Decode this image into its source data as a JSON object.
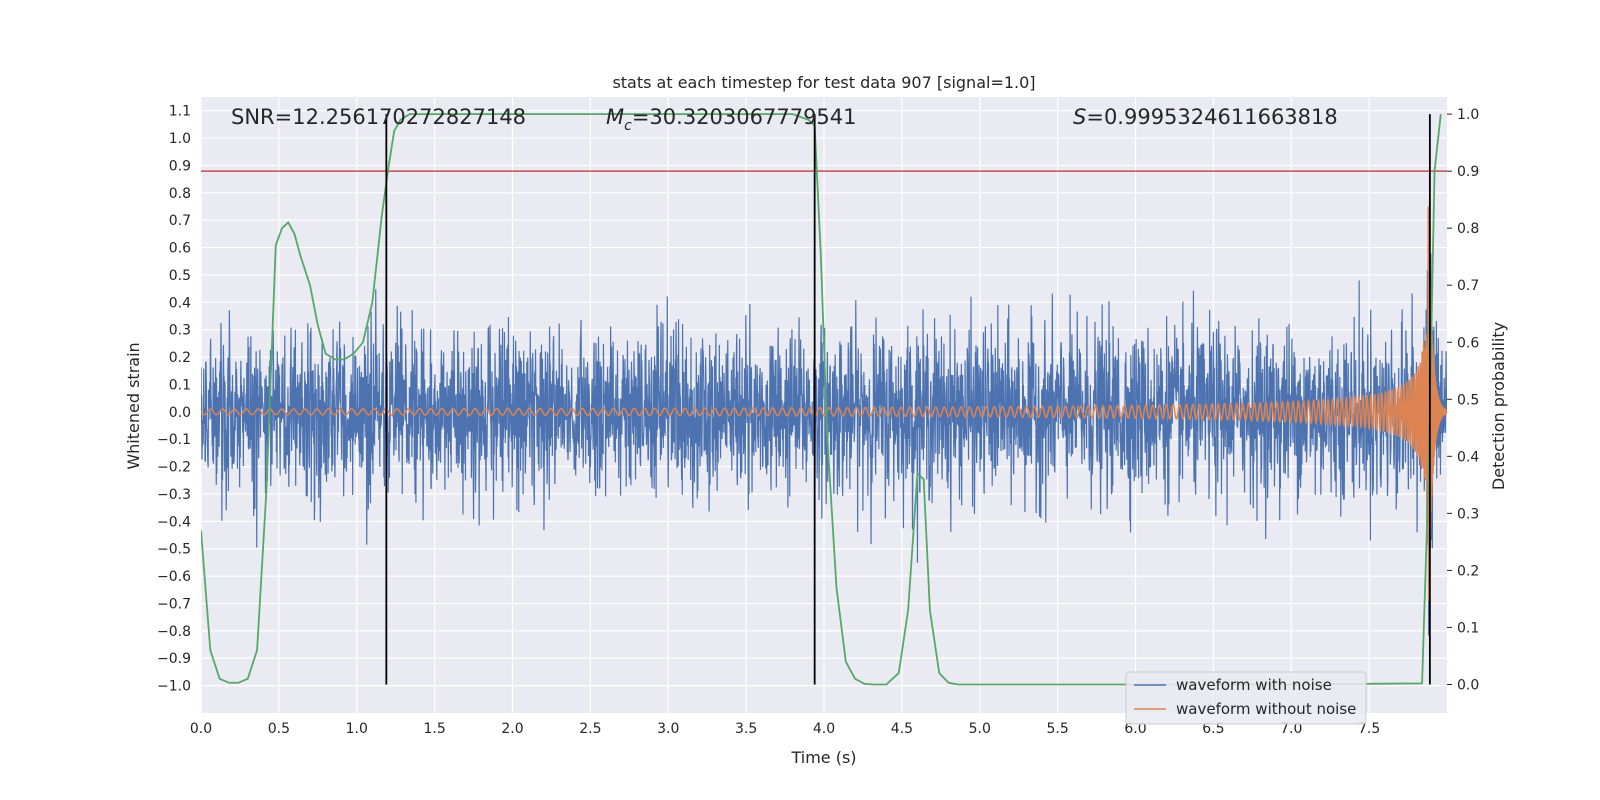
{
  "chart_data": {
    "type": "line",
    "title": "stats at each timestep for test data 907 [signal=1.0]",
    "xlabel": "Time (s)",
    "ylabel": "Whitened strain",
    "y2label": "Detection probability",
    "xlim": [
      0.0,
      8.0
    ],
    "ylim": [
      -1.1,
      1.15
    ],
    "y2lim": [
      -0.05,
      1.03
    ],
    "grid": true,
    "xticks": [
      "0.0",
      "0.5",
      "1.0",
      "1.5",
      "2.0",
      "2.5",
      "3.0",
      "3.5",
      "4.0",
      "4.5",
      "5.0",
      "5.5",
      "6.0",
      "6.5",
      "7.0",
      "7.5"
    ],
    "yticks": [
      "1.1",
      "1.0",
      "0.9",
      "0.8",
      "0.7",
      "0.6",
      "0.5",
      "0.4",
      "0.3",
      "0.2",
      "0.1",
      "0.0",
      "−0.1",
      "−0.2",
      "−0.3",
      "−0.4",
      "−0.5",
      "−0.6",
      "−0.7",
      "−0.8",
      "−0.9",
      "−1.0"
    ],
    "y2ticks": [
      "1.0",
      "0.9",
      "0.8",
      "0.7",
      "0.6",
      "0.5",
      "0.4",
      "0.3",
      "0.2",
      "0.1",
      "0.0"
    ],
    "annotations": {
      "snr": "SNR=12.256170272827148",
      "mc_symbol": "M",
      "mc_sub": "c",
      "mc_value": "=30.3203067779541",
      "s_symbol": "S",
      "s_value": "=0.9995324611663818"
    },
    "series": [
      {
        "name": "waveform with noise",
        "color": "#4c72b0",
        "axis": "left",
        "noise_std": 0.15,
        "approx_peak_abs": 0.72
      },
      {
        "name": "waveform without noise",
        "color": "#dd8452",
        "axis": "left",
        "model": "chirp",
        "merger_time": 7.88,
        "peak_amplitude": 0.75
      },
      {
        "name": "Detection probability",
        "color": "#55a868",
        "axis": "right",
        "x": [
          0.0,
          0.06,
          0.12,
          0.18,
          0.24,
          0.3,
          0.36,
          0.42,
          0.48,
          0.52,
          0.56,
          0.6,
          0.64,
          0.7,
          0.75,
          0.8,
          0.86,
          0.92,
          0.98,
          1.04,
          1.1,
          1.16,
          1.2,
          1.24,
          1.28,
          1.34,
          1.4,
          2.0,
          3.0,
          3.8,
          3.9,
          3.94,
          3.98,
          4.02,
          4.08,
          4.14,
          4.2,
          4.26,
          4.32,
          4.4,
          4.48,
          4.54,
          4.6,
          4.64,
          4.68,
          4.74,
          4.8,
          4.86,
          4.92,
          5.0,
          6.0,
          7.0,
          7.84,
          7.88,
          7.92,
          7.96
        ],
        "y": [
          0.27,
          0.06,
          0.01,
          0.003,
          0.003,
          0.01,
          0.06,
          0.34,
          0.77,
          0.8,
          0.81,
          0.79,
          0.75,
          0.7,
          0.63,
          0.58,
          0.57,
          0.57,
          0.58,
          0.6,
          0.67,
          0.82,
          0.9,
          0.97,
          0.99,
          1.0,
          1.0,
          1.0,
          1.0,
          1.0,
          0.99,
          0.98,
          0.75,
          0.44,
          0.17,
          0.04,
          0.01,
          0.001,
          0.0,
          0.0,
          0.02,
          0.13,
          0.37,
          0.36,
          0.13,
          0.02,
          0.003,
          0.0,
          0.0,
          0.0,
          0.0,
          0.0,
          0.002,
          0.35,
          0.9,
          1.0
        ]
      }
    ],
    "threshold_line": {
      "y2": 0.9,
      "color": "#c44e52"
    },
    "vertical_markers": [
      1.19,
      3.94,
      7.89
    ],
    "legend_placement": "bottom-right"
  }
}
